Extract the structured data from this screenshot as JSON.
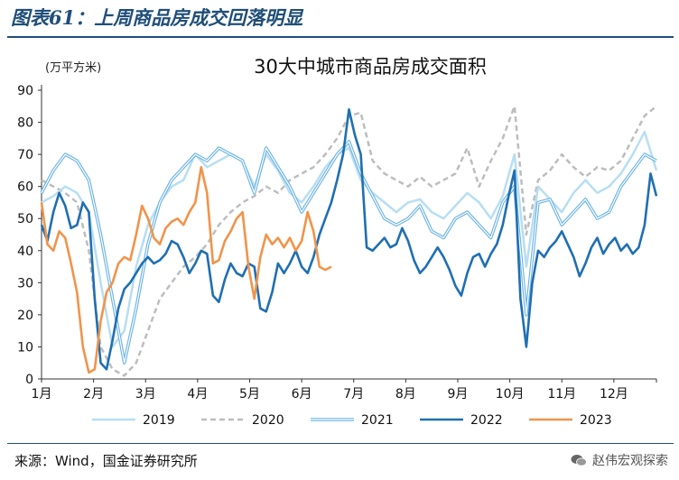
{
  "figure_title": "图表61：上周商品房成交回落明显",
  "source_text": "来源：Wind，国金证券研究所",
  "watermark_text": "赵伟宏观探索",
  "watermark_icon": "wechat-icon",
  "colors": {
    "2019": "#b7def2",
    "2020": "#bdbdbd",
    "2021": "#6cb4e4",
    "2022": "#1f6fb2",
    "2023": "#f0944a",
    "rule": "#1f4e79"
  },
  "chart_data": {
    "type": "line",
    "title": "30大中城市商品房成交面积",
    "ylabel": "(万平方米)",
    "xlabel": "",
    "ylim": [
      0,
      90
    ],
    "yticks": [
      0,
      10,
      20,
      30,
      40,
      50,
      60,
      70,
      80,
      90
    ],
    "x_unit": "week of year",
    "xlim": [
      0,
      52
    ],
    "xtick_labels": [
      "1月",
      "2月",
      "3月",
      "4月",
      "5月",
      "6月",
      "7月",
      "8月",
      "9月",
      "10月",
      "11月",
      "12月"
    ],
    "xtick_positions": [
      0,
      4.4,
      8.8,
      13.2,
      17.6,
      22,
      26.4,
      30.8,
      35.2,
      39.6,
      44,
      48.4
    ],
    "legend_position": "bottom",
    "grid": false,
    "series": [
      {
        "name": "2019",
        "style": "solid",
        "points": [
          [
            0,
            55
          ],
          [
            1,
            57
          ],
          [
            2,
            60
          ],
          [
            3,
            58
          ],
          [
            4,
            52
          ],
          [
            5,
            30
          ],
          [
            6,
            10
          ],
          [
            7,
            15
          ],
          [
            8,
            35
          ],
          [
            9,
            48
          ],
          [
            10,
            55
          ],
          [
            11,
            60
          ],
          [
            12,
            62
          ],
          [
            13,
            70
          ],
          [
            14,
            66
          ],
          [
            15,
            68
          ],
          [
            16,
            70
          ],
          [
            17,
            68
          ],
          [
            18,
            60
          ],
          [
            19,
            70
          ],
          [
            20,
            65
          ],
          [
            21,
            58
          ],
          [
            22,
            55
          ],
          [
            23,
            60
          ],
          [
            24,
            66
          ],
          [
            25,
            70
          ],
          [
            26,
            72
          ],
          [
            27,
            62
          ],
          [
            28,
            58
          ],
          [
            29,
            55
          ],
          [
            30,
            52
          ],
          [
            31,
            55
          ],
          [
            32,
            56
          ],
          [
            33,
            52
          ],
          [
            34,
            50
          ],
          [
            35,
            54
          ],
          [
            36,
            58
          ],
          [
            37,
            55
          ],
          [
            38,
            50
          ],
          [
            39,
            57
          ],
          [
            40,
            70
          ],
          [
            41,
            35
          ],
          [
            42,
            60
          ],
          [
            43,
            56
          ],
          [
            44,
            52
          ],
          [
            45,
            58
          ],
          [
            46,
            62
          ],
          [
            47,
            58
          ],
          [
            48,
            60
          ],
          [
            49,
            64
          ],
          [
            50,
            70
          ],
          [
            51,
            77
          ],
          [
            52,
            65
          ]
        ]
      },
      {
        "name": "2020",
        "style": "dashed",
        "points": [
          [
            0,
            62
          ],
          [
            1,
            60
          ],
          [
            2,
            58
          ],
          [
            3,
            55
          ],
          [
            4,
            40
          ],
          [
            5,
            10
          ],
          [
            6,
            3
          ],
          [
            7,
            1
          ],
          [
            8,
            5
          ],
          [
            9,
            15
          ],
          [
            10,
            25
          ],
          [
            11,
            30
          ],
          [
            12,
            35
          ],
          [
            13,
            38
          ],
          [
            14,
            42
          ],
          [
            15,
            48
          ],
          [
            16,
            52
          ],
          [
            17,
            55
          ],
          [
            18,
            57
          ],
          [
            19,
            60
          ],
          [
            20,
            58
          ],
          [
            21,
            62
          ],
          [
            22,
            64
          ],
          [
            23,
            66
          ],
          [
            24,
            70
          ],
          [
            25,
            75
          ],
          [
            26,
            82
          ],
          [
            27,
            83
          ],
          [
            28,
            68
          ],
          [
            29,
            64
          ],
          [
            30,
            62
          ],
          [
            31,
            60
          ],
          [
            32,
            63
          ],
          [
            33,
            60
          ],
          [
            34,
            62
          ],
          [
            35,
            64
          ],
          [
            36,
            72
          ],
          [
            37,
            60
          ],
          [
            38,
            68
          ],
          [
            39,
            75
          ],
          [
            40,
            85
          ],
          [
            41,
            45
          ],
          [
            42,
            62
          ],
          [
            43,
            65
          ],
          [
            44,
            70
          ],
          [
            45,
            66
          ],
          [
            46,
            63
          ],
          [
            47,
            66
          ],
          [
            48,
            65
          ],
          [
            49,
            68
          ],
          [
            50,
            75
          ],
          [
            51,
            82
          ],
          [
            52,
            85
          ]
        ]
      },
      {
        "name": "2021",
        "style": "double",
        "points": [
          [
            0,
            58
          ],
          [
            1,
            65
          ],
          [
            2,
            70
          ],
          [
            3,
            68
          ],
          [
            4,
            62
          ],
          [
            5,
            45
          ],
          [
            6,
            25
          ],
          [
            7,
            5
          ],
          [
            8,
            22
          ],
          [
            9,
            42
          ],
          [
            10,
            55
          ],
          [
            11,
            62
          ],
          [
            12,
            66
          ],
          [
            13,
            70
          ],
          [
            14,
            68
          ],
          [
            15,
            72
          ],
          [
            16,
            70
          ],
          [
            17,
            68
          ],
          [
            18,
            58
          ],
          [
            19,
            72
          ],
          [
            20,
            66
          ],
          [
            21,
            60
          ],
          [
            22,
            52
          ],
          [
            23,
            58
          ],
          [
            24,
            64
          ],
          [
            25,
            70
          ],
          [
            26,
            74
          ],
          [
            27,
            64
          ],
          [
            28,
            57
          ],
          [
            29,
            50
          ],
          [
            30,
            48
          ],
          [
            31,
            50
          ],
          [
            32,
            54
          ],
          [
            33,
            46
          ],
          [
            34,
            44
          ],
          [
            35,
            50
          ],
          [
            36,
            52
          ],
          [
            37,
            48
          ],
          [
            38,
            44
          ],
          [
            39,
            55
          ],
          [
            40,
            60
          ],
          [
            41,
            20
          ],
          [
            42,
            55
          ],
          [
            43,
            56
          ],
          [
            44,
            48
          ],
          [
            45,
            52
          ],
          [
            46,
            56
          ],
          [
            47,
            50
          ],
          [
            48,
            52
          ],
          [
            49,
            60
          ],
          [
            50,
            65
          ],
          [
            51,
            70
          ],
          [
            52,
            68
          ]
        ]
      },
      {
        "name": "2022",
        "style": "solid",
        "points": [
          [
            0,
            48
          ],
          [
            0.5,
            43
          ],
          [
            1,
            52
          ],
          [
            1.5,
            58
          ],
          [
            2,
            54
          ],
          [
            2.5,
            47
          ],
          [
            3,
            48
          ],
          [
            3.5,
            55
          ],
          [
            4,
            52
          ],
          [
            4.5,
            25
          ],
          [
            5,
            5
          ],
          [
            5.5,
            3
          ],
          [
            6,
            12
          ],
          [
            6.5,
            22
          ],
          [
            7,
            28
          ],
          [
            7.5,
            30
          ],
          [
            8,
            33
          ],
          [
            8.5,
            36
          ],
          [
            9,
            38
          ],
          [
            9.5,
            36
          ],
          [
            10,
            37
          ],
          [
            10.5,
            39
          ],
          [
            11,
            43
          ],
          [
            11.5,
            42
          ],
          [
            12,
            38
          ],
          [
            12.5,
            33
          ],
          [
            13,
            36
          ],
          [
            13.5,
            40
          ],
          [
            14,
            39
          ],
          [
            14.5,
            26
          ],
          [
            15,
            24
          ],
          [
            15.5,
            31
          ],
          [
            16,
            36
          ],
          [
            16.5,
            33
          ],
          [
            17,
            32
          ],
          [
            17.5,
            36
          ],
          [
            18,
            35
          ],
          [
            18.5,
            22
          ],
          [
            19,
            21
          ],
          [
            19.5,
            27
          ],
          [
            20,
            36
          ],
          [
            20.5,
            33
          ],
          [
            21,
            36
          ],
          [
            21.5,
            40
          ],
          [
            22,
            35
          ],
          [
            22.5,
            33
          ],
          [
            23,
            38
          ],
          [
            23.5,
            45
          ],
          [
            24,
            50
          ],
          [
            24.5,
            55
          ],
          [
            25,
            62
          ],
          [
            25.5,
            70
          ],
          [
            26,
            84
          ],
          [
            26.5,
            76
          ],
          [
            27,
            70
          ],
          [
            27.5,
            41
          ],
          [
            28,
            40
          ],
          [
            28.5,
            42
          ],
          [
            29,
            44
          ],
          [
            29.5,
            41
          ],
          [
            30,
            42
          ],
          [
            30.5,
            47
          ],
          [
            31,
            43
          ],
          [
            31.5,
            37
          ],
          [
            32,
            33
          ],
          [
            32.5,
            35
          ],
          [
            33,
            38
          ],
          [
            33.5,
            41
          ],
          [
            34,
            38
          ],
          [
            34.5,
            34
          ],
          [
            35,
            29
          ],
          [
            35.5,
            26
          ],
          [
            36,
            33
          ],
          [
            36.5,
            38
          ],
          [
            37,
            39
          ],
          [
            37.5,
            35
          ],
          [
            38,
            39
          ],
          [
            38.5,
            42
          ],
          [
            39,
            48
          ],
          [
            39.5,
            57
          ],
          [
            40,
            65
          ],
          [
            40.5,
            25
          ],
          [
            41,
            10
          ],
          [
            41.5,
            30
          ],
          [
            42,
            40
          ],
          [
            42.5,
            38
          ],
          [
            43,
            41
          ],
          [
            43.5,
            43
          ],
          [
            44,
            46
          ],
          [
            44.5,
            42
          ],
          [
            45,
            38
          ],
          [
            45.5,
            32
          ],
          [
            46,
            36
          ],
          [
            46.5,
            41
          ],
          [
            47,
            44
          ],
          [
            47.5,
            39
          ],
          [
            48,
            42
          ],
          [
            48.5,
            44
          ],
          [
            49,
            40
          ],
          [
            49.5,
            42
          ],
          [
            50,
            39
          ],
          [
            50.5,
            41
          ],
          [
            51,
            48
          ],
          [
            51.5,
            64
          ],
          [
            52,
            57
          ]
        ]
      },
      {
        "name": "2023",
        "style": "solid",
        "points": [
          [
            0,
            55
          ],
          [
            0.5,
            42
          ],
          [
            1,
            40
          ],
          [
            1.5,
            46
          ],
          [
            2,
            44
          ],
          [
            2.5,
            36
          ],
          [
            3,
            27
          ],
          [
            3.5,
            10
          ],
          [
            4,
            2
          ],
          [
            4.5,
            3
          ],
          [
            5,
            18
          ],
          [
            5.5,
            27
          ],
          [
            6,
            30
          ],
          [
            6.5,
            36
          ],
          [
            7,
            38
          ],
          [
            7.5,
            37
          ],
          [
            8,
            45
          ],
          [
            8.5,
            54
          ],
          [
            9,
            50
          ],
          [
            9.5,
            44
          ],
          [
            10,
            42
          ],
          [
            10.5,
            47
          ],
          [
            11,
            49
          ],
          [
            11.5,
            50
          ],
          [
            12,
            48
          ],
          [
            12.5,
            52
          ],
          [
            13,
            55
          ],
          [
            13.5,
            66
          ],
          [
            14,
            58
          ],
          [
            14.5,
            36
          ],
          [
            15,
            37
          ],
          [
            15.5,
            43
          ],
          [
            16,
            46
          ],
          [
            16.5,
            50
          ],
          [
            17,
            52
          ],
          [
            17.5,
            35
          ],
          [
            18,
            25
          ],
          [
            18.5,
            38
          ],
          [
            19,
            45
          ],
          [
            19.5,
            42
          ],
          [
            20,
            44
          ],
          [
            20.5,
            41
          ],
          [
            21,
            44
          ],
          [
            21.5,
            40
          ],
          [
            22,
            43
          ],
          [
            22.5,
            52
          ],
          [
            23,
            46
          ],
          [
            23.5,
            35
          ],
          [
            24,
            34
          ],
          [
            24.5,
            35
          ]
        ]
      }
    ]
  }
}
